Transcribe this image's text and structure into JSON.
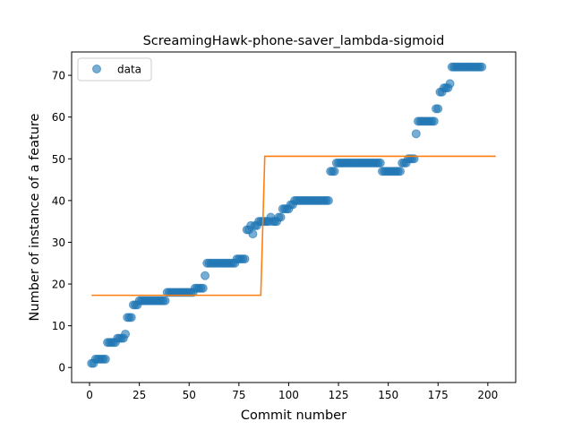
{
  "chart_data": {
    "type": "scatter",
    "title": "ScreamingHawk-phone-saver_lambda-sigmoid",
    "xlabel": "Commit number",
    "ylabel": "Number of instance of a feature",
    "xlim": [
      -9,
      214
    ],
    "ylim": [
      -3.6,
      75.6
    ],
    "xticks": [
      0,
      25,
      50,
      75,
      100,
      125,
      150,
      175,
      200
    ],
    "yticks": [
      0,
      10,
      20,
      30,
      40,
      50,
      60,
      70
    ],
    "legend": {
      "position": "top-left",
      "entries": [
        {
          "label": "data",
          "color": "#1f77b4"
        }
      ]
    },
    "grid": false,
    "series": [
      {
        "name": "data",
        "kind": "scatter",
        "color": "#1f77b4",
        "points": [
          [
            1,
            1
          ],
          [
            2,
            1
          ],
          [
            3,
            2
          ],
          [
            4,
            2
          ],
          [
            5,
            2
          ],
          [
            6,
            2
          ],
          [
            7,
            2
          ],
          [
            8,
            2
          ],
          [
            9,
            6
          ],
          [
            10,
            6
          ],
          [
            11,
            6
          ],
          [
            12,
            6
          ],
          [
            13,
            6
          ],
          [
            14,
            7
          ],
          [
            15,
            7
          ],
          [
            16,
            7
          ],
          [
            17,
            7
          ],
          [
            18,
            8
          ],
          [
            19,
            12
          ],
          [
            20,
            12
          ],
          [
            21,
            12
          ],
          [
            22,
            15
          ],
          [
            23,
            15
          ],
          [
            24,
            15
          ],
          [
            25,
            16
          ],
          [
            26,
            16
          ],
          [
            27,
            16
          ],
          [
            28,
            16
          ],
          [
            29,
            16
          ],
          [
            30,
            16
          ],
          [
            31,
            16
          ],
          [
            32,
            16
          ],
          [
            33,
            16
          ],
          [
            34,
            16
          ],
          [
            35,
            16
          ],
          [
            36,
            16
          ],
          [
            37,
            16
          ],
          [
            38,
            16
          ],
          [
            39,
            18
          ],
          [
            40,
            18
          ],
          [
            41,
            18
          ],
          [
            42,
            18
          ],
          [
            43,
            18
          ],
          [
            44,
            18
          ],
          [
            45,
            18
          ],
          [
            46,
            18
          ],
          [
            47,
            18
          ],
          [
            48,
            18
          ],
          [
            49,
            18
          ],
          [
            50,
            18
          ],
          [
            51,
            18
          ],
          [
            52,
            18
          ],
          [
            53,
            19
          ],
          [
            54,
            19
          ],
          [
            55,
            19
          ],
          [
            56,
            19
          ],
          [
            57,
            19
          ],
          [
            58,
            22
          ],
          [
            59,
            25
          ],
          [
            60,
            25
          ],
          [
            61,
            25
          ],
          [
            62,
            25
          ],
          [
            63,
            25
          ],
          [
            64,
            25
          ],
          [
            65,
            25
          ],
          [
            66,
            25
          ],
          [
            67,
            25
          ],
          [
            68,
            25
          ],
          [
            69,
            25
          ],
          [
            70,
            25
          ],
          [
            71,
            25
          ],
          [
            72,
            25
          ],
          [
            73,
            25
          ],
          [
            74,
            26
          ],
          [
            75,
            26
          ],
          [
            76,
            26
          ],
          [
            77,
            26
          ],
          [
            78,
            26
          ],
          [
            79,
            33
          ],
          [
            80,
            33
          ],
          [
            81,
            34
          ],
          [
            82,
            32
          ],
          [
            83,
            34
          ],
          [
            84,
            34
          ],
          [
            85,
            35
          ],
          [
            86,
            35
          ],
          [
            87,
            35
          ],
          [
            88,
            35
          ],
          [
            89,
            35
          ],
          [
            90,
            35
          ],
          [
            91,
            36
          ],
          [
            92,
            35
          ],
          [
            93,
            35
          ],
          [
            94,
            35
          ],
          [
            95,
            36
          ],
          [
            96,
            36
          ],
          [
            97,
            38
          ],
          [
            98,
            38
          ],
          [
            99,
            38
          ],
          [
            100,
            38
          ],
          [
            101,
            39
          ],
          [
            102,
            39
          ],
          [
            103,
            40
          ],
          [
            104,
            40
          ],
          [
            105,
            40
          ],
          [
            106,
            40
          ],
          [
            107,
            40
          ],
          [
            108,
            40
          ],
          [
            109,
            40
          ],
          [
            110,
            40
          ],
          [
            111,
            40
          ],
          [
            112,
            40
          ],
          [
            113,
            40
          ],
          [
            114,
            40
          ],
          [
            115,
            40
          ],
          [
            116,
            40
          ],
          [
            117,
            40
          ],
          [
            118,
            40
          ],
          [
            119,
            40
          ],
          [
            120,
            40
          ],
          [
            121,
            47
          ],
          [
            122,
            47
          ],
          [
            123,
            47
          ],
          [
            124,
            49
          ],
          [
            125,
            49
          ],
          [
            126,
            49
          ],
          [
            127,
            49
          ],
          [
            128,
            49
          ],
          [
            129,
            49
          ],
          [
            130,
            49
          ],
          [
            131,
            49
          ],
          [
            132,
            49
          ],
          [
            133,
            49
          ],
          [
            134,
            49
          ],
          [
            135,
            49
          ],
          [
            136,
            49
          ],
          [
            137,
            49
          ],
          [
            138,
            49
          ],
          [
            139,
            49
          ],
          [
            140,
            49
          ],
          [
            141,
            49
          ],
          [
            142,
            49
          ],
          [
            143,
            49
          ],
          [
            144,
            49
          ],
          [
            145,
            49
          ],
          [
            146,
            49
          ],
          [
            147,
            47
          ],
          [
            148,
            47
          ],
          [
            149,
            47
          ],
          [
            150,
            47
          ],
          [
            151,
            47
          ],
          [
            152,
            47
          ],
          [
            153,
            47
          ],
          [
            154,
            47
          ],
          [
            155,
            47
          ],
          [
            156,
            47
          ],
          [
            157,
            49
          ],
          [
            158,
            49
          ],
          [
            159,
            49
          ],
          [
            160,
            50
          ],
          [
            161,
            50
          ],
          [
            162,
            50
          ],
          [
            163,
            50
          ],
          [
            164,
            56
          ],
          [
            165,
            59
          ],
          [
            166,
            59
          ],
          [
            167,
            59
          ],
          [
            168,
            59
          ],
          [
            169,
            59
          ],
          [
            170,
            59
          ],
          [
            171,
            59
          ],
          [
            172,
            59
          ],
          [
            173,
            59
          ],
          [
            174,
            62
          ],
          [
            175,
            62
          ],
          [
            176,
            66
          ],
          [
            177,
            66
          ],
          [
            178,
            67
          ],
          [
            179,
            67
          ],
          [
            180,
            67
          ],
          [
            181,
            68
          ],
          [
            182,
            72
          ],
          [
            183,
            72
          ],
          [
            184,
            72
          ],
          [
            185,
            72
          ],
          [
            186,
            72
          ],
          [
            187,
            72
          ],
          [
            188,
            72
          ],
          [
            189,
            72
          ],
          [
            190,
            72
          ],
          [
            191,
            72
          ],
          [
            192,
            72
          ],
          [
            193,
            72
          ],
          [
            194,
            72
          ],
          [
            195,
            72
          ],
          [
            196,
            72
          ],
          [
            197,
            72
          ]
        ]
      },
      {
        "kind": "line",
        "color": "#ff7f0e",
        "points": [
          [
            1,
            17.3
          ],
          [
            86,
            17.3
          ],
          [
            88,
            50.6
          ],
          [
            204,
            50.6
          ]
        ]
      }
    ]
  }
}
